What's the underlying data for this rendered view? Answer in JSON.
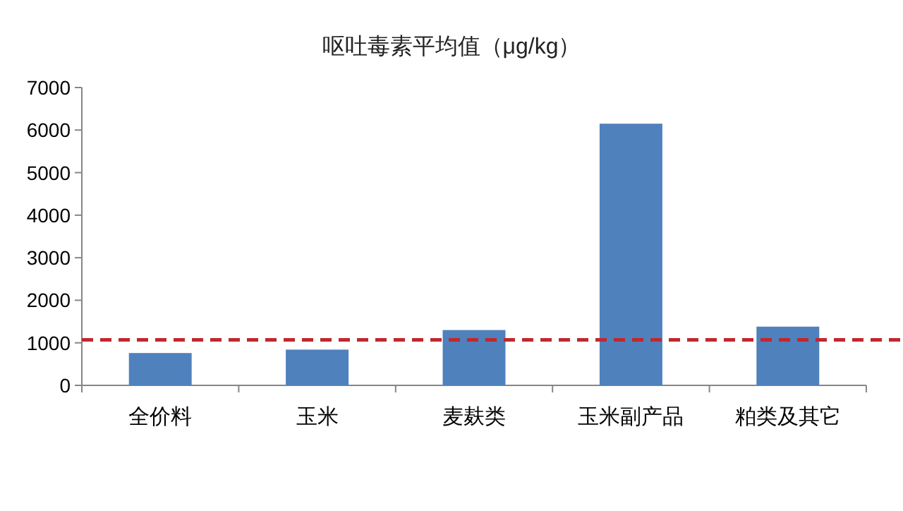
{
  "chart_data": {
    "type": "bar",
    "title": "呕吐毒素平均值（μg/kg）",
    "categories": [
      "全价料",
      "玉米",
      "麦麸类",
      "玉米副产品",
      "粕类及其它"
    ],
    "values": [
      760,
      840,
      1300,
      6150,
      1380
    ],
    "color": "#4f81bd",
    "ylim": [
      0,
      7000
    ],
    "yticks": [
      0,
      1000,
      2000,
      3000,
      4000,
      5000,
      6000,
      7000
    ],
    "ref_lines": [
      {
        "axis": "y",
        "value": 1070,
        "color": "#c0282d",
        "line_style": "dashed"
      }
    ]
  }
}
